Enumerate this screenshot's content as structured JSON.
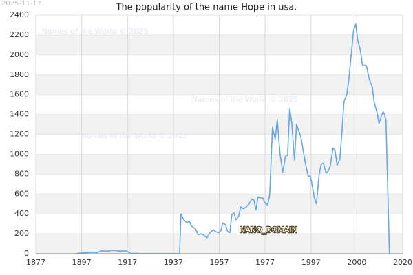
{
  "timestamp": "2025-11-17",
  "watermarks": [
    "Names of the World  © 2025",
    "Names of the World  © 2025",
    "Names of the World  © 2025"
  ],
  "annotation": "NANO_DOMAIN",
  "chart_data": {
    "type": "line",
    "title": "The popularity of the name Hope in usa.",
    "color": "#64a8ea",
    "grid": true,
    "bands": true,
    "xlim": [
      1877,
      2037
    ],
    "xticks": [
      1877,
      1897,
      1917,
      1937,
      1957,
      1977,
      1997,
      {
        "value": 2017,
        "label": "2000"
      },
      {
        "value": 2037,
        "label": "2020"
      }
    ],
    "ylim": [
      0,
      2400
    ],
    "yticks": [
      0,
      200,
      400,
      600,
      800,
      1000,
      1200,
      1400,
      1600,
      1800,
      2000,
      2200,
      2400
    ],
    "x": [
      1893.8,
      1895.9,
      1898.9,
      1901.9,
      1903.4,
      1905.8,
      1907.9,
      1910.9,
      1912.4,
      1913.9,
      1916.3,
      1918.4,
      1921.4,
      1927.4,
      1938.8,
      1939.7,
      1940.3,
      1941.5,
      1943,
      1943.9,
      1944.8,
      1946.6,
      1947.8,
      1949.3,
      1950.5,
      1951.7,
      1952.9,
      1954.4,
      1955.6,
      1956.8,
      1957.7,
      1958.6,
      1959.8,
      1960.7,
      1961.6,
      1962.5,
      1963.4,
      1964.3,
      1965.5,
      1966.4,
      1967.6,
      1968.8,
      1970,
      1971.2,
      1972.1,
      1973,
      1973.9,
      1975.1,
      1976,
      1976.9,
      1978.1,
      1979,
      1980.2,
      1981.4,
      1982.3,
      1983.5,
      1984.7,
      1985.9,
      1986.8,
      1987.7,
      1988.6,
      1989.8,
      1990.7,
      1991.9,
      1992.8,
      1993.7,
      1994.9,
      1995.8,
      1996.7,
      1997.6,
      1998.5,
      1999.4,
      2000.6,
      2001.5,
      2002.4,
      2003.6,
      2004.5,
      2005.4,
      2006.6,
      2007.5,
      2008.4,
      2009.6,
      2010.5,
      2011.4,
      2012.6,
      2013.5,
      2014.4,
      2015.6,
      2016.5,
      2017.4,
      2018.6,
      2019.5,
      2020.4,
      2021.3,
      2022.5,
      2023.7,
      2024.6,
      2025.8,
      2026.7,
      2027.6,
      2028.5,
      2029.7,
      2031.2,
      2032.1
    ],
    "values": [
      0,
      5,
      10,
      15,
      10,
      30,
      25,
      35,
      30,
      25,
      30,
      5,
      3,
      2,
      2,
      0,
      400,
      340,
      310,
      330,
      280,
      250,
      190,
      200,
      180,
      160,
      210,
      240,
      220,
      210,
      230,
      310,
      290,
      220,
      210,
      390,
      410,
      340,
      380,
      470,
      450,
      470,
      500,
      550,
      540,
      440,
      570,
      560,
      560,
      510,
      490,
      590,
      1270,
      1150,
      1350,
      1000,
      820,
      980,
      990,
      1460,
      1320,
      940,
      1300,
      1220,
      1150,
      1020,
      870,
      780,
      780,
      680,
      560,
      500,
      800,
      900,
      910,
      810,
      830,
      880,
      1060,
      1040,
      890,
      950,
      1220,
      1530,
      1600,
      1750,
      1960,
      2250,
      2310,
      2150,
      2040,
      1890,
      1900,
      1880,
      1750,
      1680,
      1520,
      1420,
      1310,
      1380,
      1430,
      1350,
      0,
      0
    ]
  }
}
